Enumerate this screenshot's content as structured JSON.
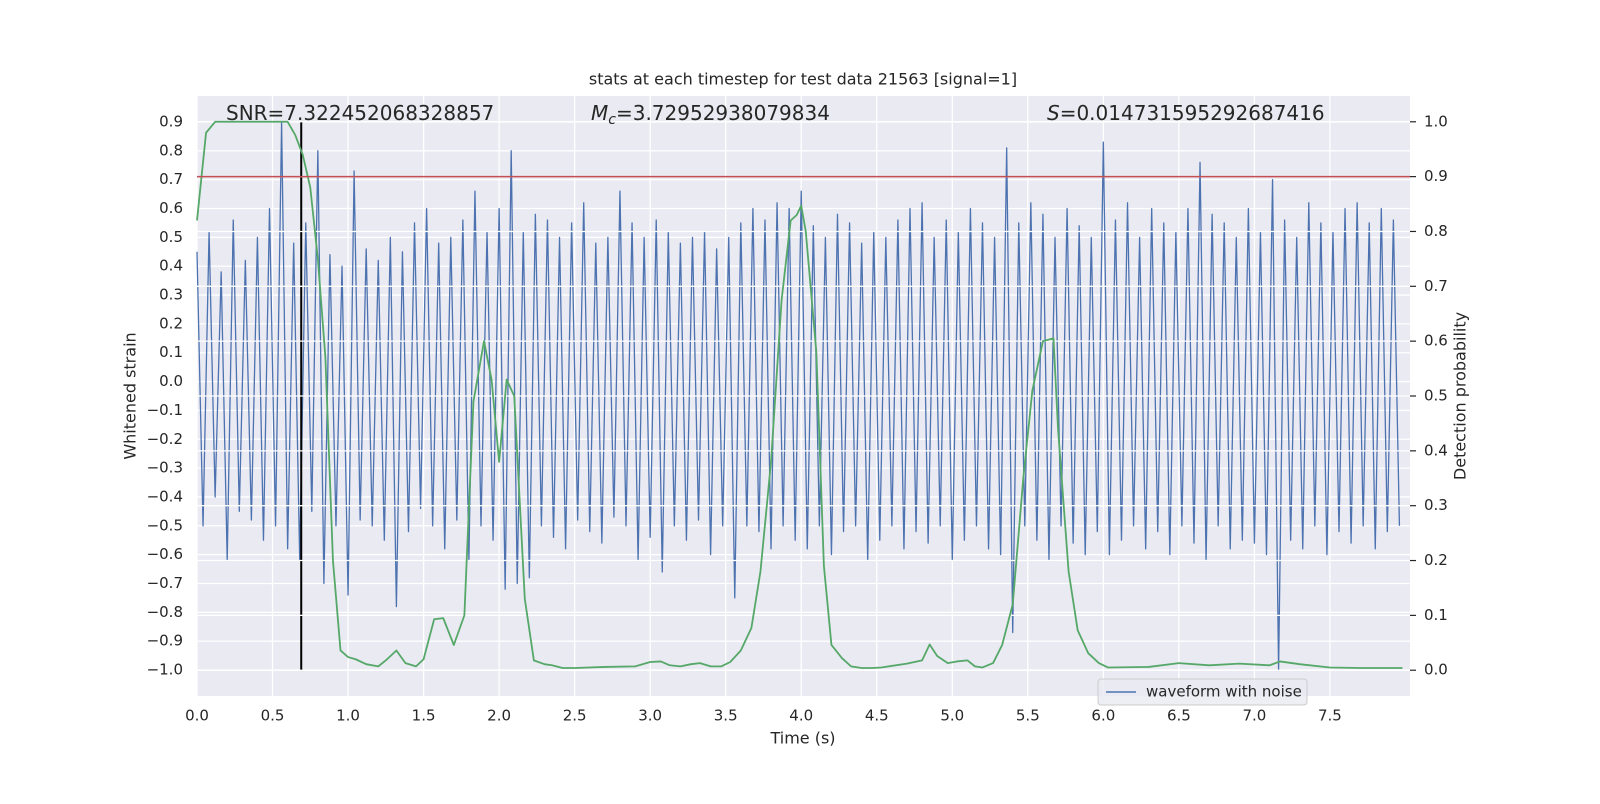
{
  "chart_data": {
    "type": "line",
    "title": "stats at each timestep for test data 21563 [signal=1]",
    "xlabel": "Time (s)",
    "ylabel": "Whitened strain",
    "y2label": "Detection probability",
    "annotations": [
      {
        "text": "SNR=7.322452068328857"
      },
      {
        "symbol": "M",
        "subscript": "c",
        "text": "=3.72952938079834"
      },
      {
        "symbol": "S",
        "text": "=0.014731595292687416"
      }
    ],
    "xlim": [
      0,
      8.03
    ],
    "ylim": [
      -1.09,
      0.99
    ],
    "y2lim": [
      -0.047,
      1.047
    ],
    "xticks": [
      {
        "value": 0,
        "label": "0.0"
      },
      {
        "value": 0.5,
        "label": "0.5"
      },
      {
        "value": 1,
        "label": "1.0"
      },
      {
        "value": 1.5,
        "label": "1.5"
      },
      {
        "value": 2,
        "label": "2.0"
      },
      {
        "value": 2.5,
        "label": "2.5"
      },
      {
        "value": 3,
        "label": "3.0"
      },
      {
        "value": 3.5,
        "label": "3.5"
      },
      {
        "value": 4,
        "label": "4.0"
      },
      {
        "value": 4.5,
        "label": "4.5"
      },
      {
        "value": 5,
        "label": "5.0"
      },
      {
        "value": 5.5,
        "label": "5.5"
      },
      {
        "value": 6,
        "label": "6.0"
      },
      {
        "value": 6.5,
        "label": "6.5"
      },
      {
        "value": 7,
        "label": "7.0"
      },
      {
        "value": 7.5,
        "label": "7.5"
      }
    ],
    "yticks": [
      {
        "value": -1.0,
        "label": "−1.0"
      },
      {
        "value": -0.9,
        "label": "−0.9"
      },
      {
        "value": -0.8,
        "label": "−0.8"
      },
      {
        "value": -0.7,
        "label": "−0.7"
      },
      {
        "value": -0.6,
        "label": "−0.6"
      },
      {
        "value": -0.5,
        "label": "−0.5"
      },
      {
        "value": -0.4,
        "label": "−0.4"
      },
      {
        "value": -0.3,
        "label": "−0.3"
      },
      {
        "value": -0.2,
        "label": "−0.2"
      },
      {
        "value": -0.1,
        "label": "−0.1"
      },
      {
        "value": 0,
        "label": "0.0"
      },
      {
        "value": 0.1,
        "label": "0.1"
      },
      {
        "value": 0.2,
        "label": "0.2"
      },
      {
        "value": 0.3,
        "label": "0.3"
      },
      {
        "value": 0.4,
        "label": "0.4"
      },
      {
        "value": 0.5,
        "label": "0.5"
      },
      {
        "value": 0.6,
        "label": "0.6"
      },
      {
        "value": 0.7,
        "label": "0.7"
      },
      {
        "value": 0.8,
        "label": "0.8"
      },
      {
        "value": 0.9,
        "label": "0.9"
      }
    ],
    "y2ticks": [
      {
        "value": 0,
        "label": "0.0"
      },
      {
        "value": 0.1,
        "label": "0.1"
      },
      {
        "value": 0.2,
        "label": "0.2"
      },
      {
        "value": 0.3,
        "label": "0.3"
      },
      {
        "value": 0.4,
        "label": "0.4"
      },
      {
        "value": 0.5,
        "label": "0.5"
      },
      {
        "value": 0.6,
        "label": "0.6"
      },
      {
        "value": 0.7,
        "label": "0.7"
      },
      {
        "value": 0.8,
        "label": "0.8"
      },
      {
        "value": 0.9,
        "label": "0.9"
      },
      {
        "value": 1,
        "label": "1.0"
      }
    ],
    "grid": true,
    "legend": "lower right",
    "series": [
      {
        "name": "waveform with noise",
        "color": "#4c72b0",
        "x": [
          0,
          0.04,
          0.08,
          0.12,
          0.16,
          0.2,
          0.24,
          0.28,
          0.32,
          0.36,
          0.4,
          0.44,
          0.48,
          0.52,
          0.56,
          0.6,
          0.64,
          0.68,
          0.72,
          0.76,
          0.8,
          0.84,
          0.88,
          0.92,
          0.96,
          1,
          1.04,
          1.08,
          1.12,
          1.16,
          1.2,
          1.24,
          1.28,
          1.32,
          1.36,
          1.4,
          1.44,
          1.48,
          1.52,
          1.56,
          1.6,
          1.64,
          1.68,
          1.72,
          1.76,
          1.8,
          1.84,
          1.88,
          1.92,
          1.96,
          2,
          2.04,
          2.08,
          2.12,
          2.16,
          2.2,
          2.24,
          2.28,
          2.32,
          2.36,
          2.4,
          2.44,
          2.48,
          2.52,
          2.56,
          2.6,
          2.64,
          2.68,
          2.72,
          2.76,
          2.8,
          2.84,
          2.88,
          2.92,
          2.96,
          3,
          3.04,
          3.08,
          3.12,
          3.16,
          3.2,
          3.24,
          3.28,
          3.32,
          3.36,
          3.4,
          3.44,
          3.48,
          3.52,
          3.56,
          3.6,
          3.64,
          3.68,
          3.72,
          3.76,
          3.8,
          3.84,
          3.88,
          3.92,
          3.96,
          4,
          4.04,
          4.08,
          4.12,
          4.16,
          4.2,
          4.24,
          4.28,
          4.32,
          4.36,
          4.4,
          4.44,
          4.48,
          4.52,
          4.56,
          4.6,
          4.64,
          4.68,
          4.72,
          4.76,
          4.8,
          4.84,
          4.88,
          4.92,
          4.96,
          5,
          5.04,
          5.08,
          5.12,
          5.16,
          5.2,
          5.24,
          5.28,
          5.32,
          5.36,
          5.4,
          5.44,
          5.48,
          5.52,
          5.56,
          5.6,
          5.64,
          5.68,
          5.72,
          5.76,
          5.8,
          5.84,
          5.88,
          5.92,
          5.96,
          6,
          6.04,
          6.08,
          6.12,
          6.16,
          6.2,
          6.24,
          6.28,
          6.32,
          6.36,
          6.4,
          6.44,
          6.48,
          6.52,
          6.56,
          6.6,
          6.64,
          6.68,
          6.72,
          6.76,
          6.8,
          6.84,
          6.88,
          6.92,
          6.96,
          7,
          7.04,
          7.08,
          7.12,
          7.16,
          7.2,
          7.24,
          7.28,
          7.32,
          7.36,
          7.4,
          7.44,
          7.48,
          7.52,
          7.56,
          7.6,
          7.64,
          7.68,
          7.72,
          7.76,
          7.8,
          7.84,
          7.88,
          7.92,
          7.96
        ],
        "values": [
          0.45,
          -0.5,
          0.52,
          -0.4,
          0.38,
          -0.62,
          0.56,
          -0.45,
          0.42,
          -0.48,
          0.5,
          -0.55,
          0.6,
          -0.5,
          0.9,
          -0.58,
          0.48,
          -0.62,
          0.55,
          -0.45,
          0.8,
          -0.7,
          0.44,
          -0.5,
          0.4,
          -0.74,
          0.73,
          -0.48,
          0.46,
          -0.5,
          0.42,
          -0.55,
          0.5,
          -0.78,
          0.45,
          -0.52,
          0.55,
          -0.44,
          0.6,
          -0.5,
          0.48,
          -0.58,
          0.5,
          -0.48,
          0.56,
          -0.62,
          0.66,
          -0.5,
          0.52,
          -0.55,
          0.6,
          -0.72,
          0.8,
          -0.7,
          0.52,
          -0.68,
          0.58,
          -0.5,
          0.56,
          -0.54,
          0.5,
          -0.58,
          0.55,
          -0.48,
          0.62,
          -0.52,
          0.48,
          -0.56,
          0.5,
          -0.47,
          0.66,
          -0.5,
          0.55,
          -0.62,
          0.5,
          -0.54,
          0.56,
          -0.66,
          0.52,
          -0.5,
          0.48,
          -0.55,
          0.5,
          -0.48,
          0.52,
          -0.6,
          0.46,
          -0.5,
          0.5,
          -0.75,
          0.55,
          -0.5,
          0.6,
          -0.52,
          0.56,
          -0.58,
          0.62,
          -0.5,
          0.6,
          -0.55,
          0.66,
          -0.58,
          0.54,
          -0.5,
          0.5,
          -0.6,
          0.58,
          -0.52,
          0.55,
          -0.5,
          0.48,
          -0.62,
          0.52,
          -0.55,
          0.5,
          -0.5,
          0.56,
          -0.58,
          0.6,
          -0.52,
          0.62,
          -0.56,
          0.5,
          -0.5,
          0.56,
          -0.62,
          0.52,
          -0.55,
          0.6,
          -0.5,
          0.55,
          -0.58,
          0.5,
          -0.6,
          0.81,
          -0.87,
          0.55,
          -0.5,
          0.62,
          -0.55,
          0.58,
          -0.62,
          0.5,
          -0.5,
          0.6,
          -0.56,
          0.54,
          -0.6,
          0.5,
          -0.52,
          0.83,
          -0.6,
          0.56,
          -0.55,
          0.62,
          -0.5,
          0.5,
          -0.58,
          0.6,
          -0.52,
          0.55,
          -0.6,
          0.52,
          -0.5,
          0.6,
          -0.56,
          0.76,
          -0.62,
          0.58,
          -0.5,
          0.55,
          -0.58,
          0.5,
          -0.55,
          0.6,
          -0.56,
          0.52,
          -0.6,
          0.7,
          -1.0,
          0.56,
          -0.55,
          0.5,
          -0.58,
          0.62,
          -0.5,
          0.55,
          -0.6,
          0.52,
          -0.52,
          0.6,
          -0.56,
          0.62,
          -0.5,
          0.55,
          -0.58,
          0.6,
          -0.52,
          0.56,
          -0.5
        ]
      },
      {
        "color": "#55a868",
        "axis": "y2",
        "x": [
          0,
          0.06,
          0.12,
          0.2,
          0.3,
          0.4,
          0.5,
          0.6,
          0.65,
          0.7,
          0.75,
          0.8,
          0.85,
          0.9,
          0.95,
          1.0,
          1.05,
          1.12,
          1.2,
          1.25,
          1.32,
          1.38,
          1.45,
          1.5,
          1.57,
          1.63,
          1.7,
          1.77,
          1.83,
          1.9,
          1.95,
          2.0,
          2.05,
          2.1,
          2.17,
          2.23,
          2.3,
          2.35,
          2.42,
          2.5,
          2.7,
          2.9,
          3.0,
          3.07,
          3.13,
          3.2,
          3.27,
          3.33,
          3.4,
          3.47,
          3.53,
          3.6,
          3.67,
          3.73,
          3.8,
          3.87,
          3.93,
          3.97,
          4.0,
          4.03,
          4.1,
          4.15,
          4.2,
          4.27,
          4.33,
          4.4,
          4.47,
          4.53,
          4.7,
          4.8,
          4.85,
          4.9,
          4.97,
          5.03,
          5.1,
          5.15,
          5.2,
          5.27,
          5.33,
          5.4,
          5.47,
          5.53,
          5.6,
          5.67,
          5.7,
          5.77,
          5.83,
          5.9,
          5.97,
          6.03,
          6.3,
          6.5,
          6.7,
          6.9,
          7.1,
          7.17,
          7.3,
          7.5,
          7.7,
          7.98
        ],
        "values": [
          0.82,
          0.98,
          1.0,
          1.0,
          1.0,
          1.0,
          1.0,
          1.0,
          0.976,
          0.94,
          0.88,
          0.75,
          0.57,
          0.2,
          0.036,
          0.024,
          0.02,
          0.011,
          0.007,
          0.018,
          0.036,
          0.013,
          0.007,
          0.02,
          0.093,
          0.095,
          0.046,
          0.1,
          0.49,
          0.6,
          0.53,
          0.38,
          0.53,
          0.5,
          0.13,
          0.018,
          0.011,
          0.009,
          0.004,
          0.004,
          0.006,
          0.007,
          0.015,
          0.016,
          0.009,
          0.007,
          0.011,
          0.013,
          0.007,
          0.007,
          0.015,
          0.036,
          0.077,
          0.18,
          0.38,
          0.675,
          0.82,
          0.83,
          0.847,
          0.8,
          0.58,
          0.19,
          0.046,
          0.022,
          0.007,
          0.004,
          0.004,
          0.005,
          0.012,
          0.018,
          0.047,
          0.026,
          0.013,
          0.016,
          0.018,
          0.007,
          0.005,
          0.013,
          0.046,
          0.12,
          0.35,
          0.51,
          0.6,
          0.605,
          0.44,
          0.18,
          0.073,
          0.031,
          0.013,
          0.005,
          0.006,
          0.013,
          0.009,
          0.012,
          0.009,
          0.016,
          0.011,
          0.005,
          0.004,
          0.004
        ]
      }
    ],
    "hlines": [
      {
        "value": 0.9,
        "axis": "y2",
        "color": "#c44e52"
      }
    ],
    "vlines": [
      {
        "x": 0.69,
        "ymin": -1.0,
        "ymax": 0.9,
        "color": "#000000"
      }
    ]
  }
}
